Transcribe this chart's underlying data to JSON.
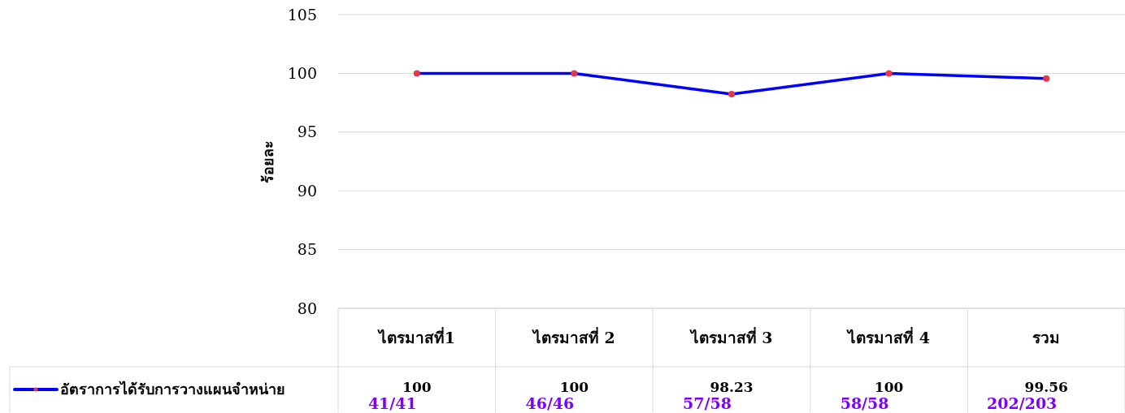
{
  "chart_data": {
    "type": "line",
    "ylabel": "ร้อยละ",
    "categories": [
      "ไตรมาสที่1",
      "ไตรมาสที่ 2",
      "ไตรมาสที่ 3",
      "ไตรมาสที่ 4",
      "รวม"
    ],
    "series": [
      {
        "name": "อัตราการได้รับการวางแผนจำหน่าย",
        "color": "#0000ff",
        "colors": [
          "#e8364e",
          "#e8364e",
          "#e8364e",
          "#e8364e",
          "#e8364e"
        ],
        "values": [
          100,
          100,
          98.23,
          100,
          99.56
        ]
      }
    ],
    "ylim": [
      80,
      105
    ],
    "yticks": [
      80,
      85,
      90,
      95,
      100,
      105
    ],
    "grid": "y",
    "marker": "circle",
    "data_labels": true,
    "annotations": [
      "41/41",
      "46/46",
      "57/58",
      "58/58",
      "202/203"
    ]
  }
}
